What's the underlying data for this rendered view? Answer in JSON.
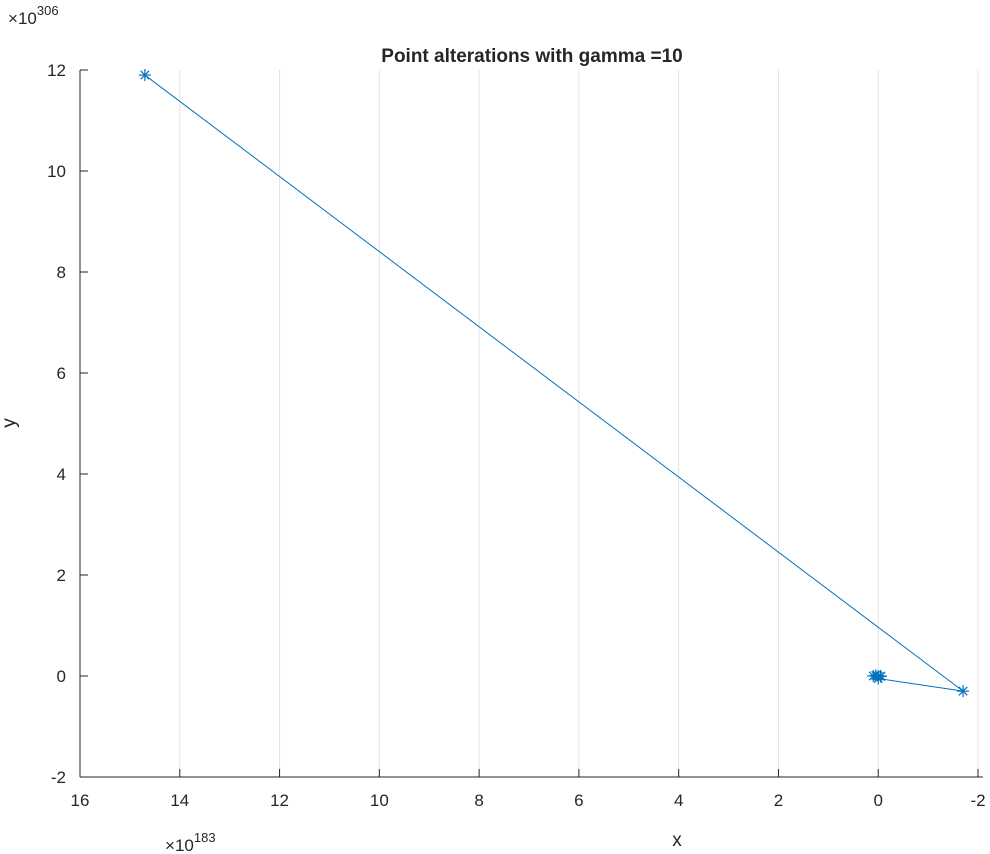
{
  "chart_data": {
    "type": "line",
    "title": "Point alterations with gamma =10",
    "xlabel": "x",
    "ylabel": "y",
    "x_exponent_label": "10",
    "x_exponent_power": "183",
    "y_exponent_label": "10",
    "y_exponent_power": "306",
    "x_reversed": true,
    "xlim": [
      16.0,
      -2.1
    ],
    "ylim": [
      -2.0,
      12.0
    ],
    "x_ticks": [
      16,
      14,
      12,
      10,
      8,
      6,
      4,
      2,
      0,
      -2
    ],
    "y_ticks": [
      -2,
      0,
      2,
      4,
      6,
      8,
      10,
      12
    ],
    "grid": "x-only",
    "marker": "asterisk",
    "series": [
      {
        "color": "#0072BD",
        "x": [
          0.0,
          0.05,
          -0.05,
          0.1,
          -0.05,
          0.0,
          -1.7,
          14.7
        ],
        "y": [
          0.0,
          0.01,
          -0.01,
          0.0,
          0.0,
          -0.05,
          -0.3,
          11.9
        ]
      }
    ]
  }
}
